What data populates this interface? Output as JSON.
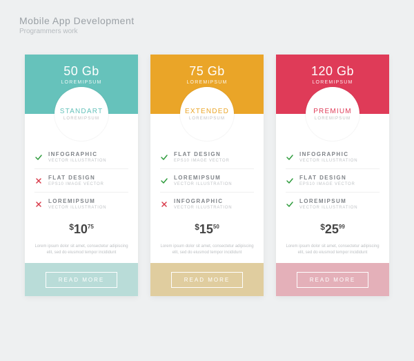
{
  "header": {
    "title": "Mobile App Development",
    "subtitle": "Programmers work"
  },
  "colors": {
    "page_bg": "#eef0f1",
    "check": "#2e9b3c",
    "cross": "#d83a4a"
  },
  "cards": [
    {
      "accent": "#66c2bb",
      "footer": "#b9dcd8",
      "quota": "50 Gb",
      "quota_sub": "LOREMIPSUM",
      "badge_name": "STANDART",
      "badge_sub": "LOREMIPSUM",
      "features": [
        {
          "ok": true,
          "title": "INFOGRAPHIC",
          "sub": "VECTOR ILLUSTRATION"
        },
        {
          "ok": false,
          "title": "FLAT DESIGN",
          "sub": "EPS10 IMAGE VECTOR"
        },
        {
          "ok": false,
          "title": "LOREMIPSUM",
          "sub": "VECTOR ILLUSTRATION"
        }
      ],
      "price": {
        "currency": "$",
        "whole": "10",
        "cents": "75"
      },
      "blurb": "Lorem ipsum dolor sit amet, consectetur adipiscing elit, sed do eiusmod tempor incididunt",
      "cta": "READ MORE"
    },
    {
      "accent": "#eaa528",
      "footer": "#e0cd9f",
      "quota": "75 Gb",
      "quota_sub": "LOREMIPSUM",
      "badge_name": "EXTENDED",
      "badge_sub": "LOREMIPSUM",
      "features": [
        {
          "ok": true,
          "title": "FLAT DESIGN",
          "sub": "EPS10 IMAGE VECTOR"
        },
        {
          "ok": true,
          "title": "LOREMIPSUM",
          "sub": "VECTOR ILLUSTRATION"
        },
        {
          "ok": false,
          "title": "INFOGRAPHIC",
          "sub": "VECTOR ILLUSTRATION"
        }
      ],
      "price": {
        "currency": "$",
        "whole": "15",
        "cents": "50"
      },
      "blurb": "Lorem ipsum dolor sit amet, consectetur adipiscing elit, sed do eiusmod tempor incididunt",
      "cta": "READ MORE"
    },
    {
      "accent": "#df3b58",
      "footer": "#e4b0b9",
      "quota": "120 Gb",
      "quota_sub": "LOREMIPSUM",
      "badge_name": "PREMIUM",
      "badge_sub": "LOREMIPSUM",
      "features": [
        {
          "ok": true,
          "title": "INFOGRAPHIC",
          "sub": "VECTOR ILLUSTRATION"
        },
        {
          "ok": true,
          "title": "FLAT DESIGN",
          "sub": "EPS10 IMAGE VECTOR"
        },
        {
          "ok": true,
          "title": "LOREMIPSUM",
          "sub": "VECTOR ILLUSTRATION"
        }
      ],
      "price": {
        "currency": "$",
        "whole": "25",
        "cents": "99"
      },
      "blurb": "Lorem ipsum dolor sit amet, consectetur adipiscing elit, sed do eiusmod tempor incididunt",
      "cta": "READ MORE"
    }
  ]
}
